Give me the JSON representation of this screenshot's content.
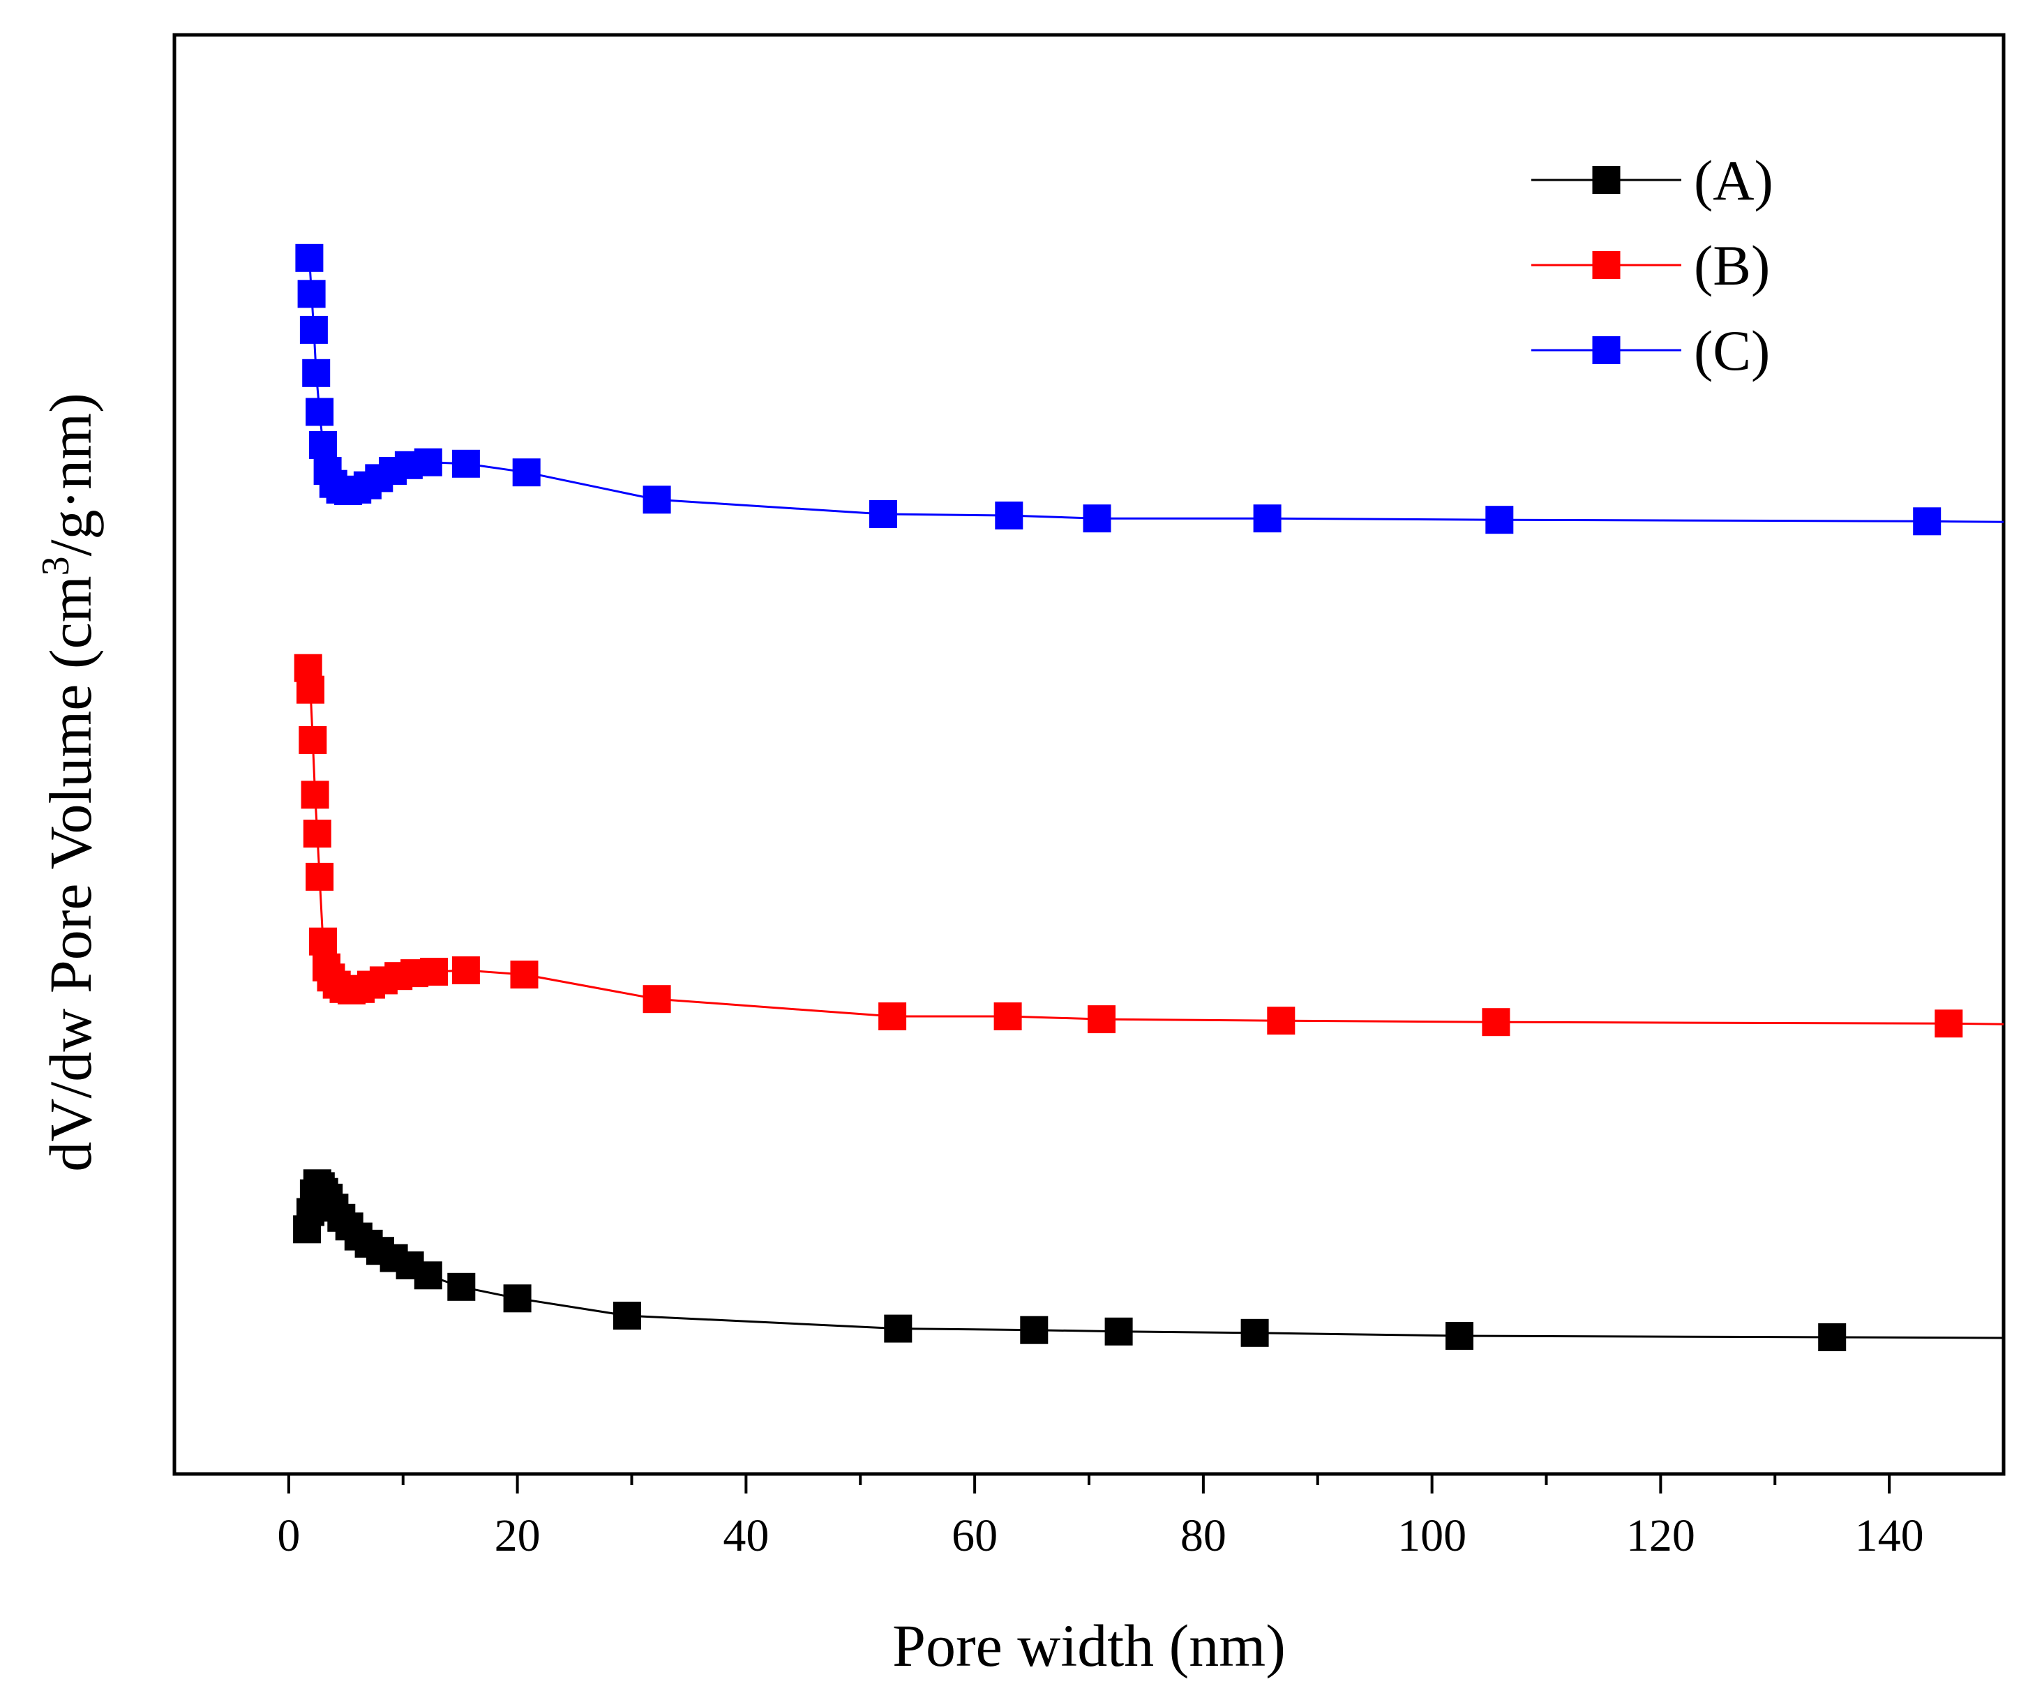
{
  "chart_data": {
    "type": "line",
    "title": "",
    "xlabel": "Pore width (nm)",
    "ylabel_main": "dV/dw Pore Volume (cm",
    "ylabel_sup": "3",
    "ylabel_tail": "/g·nm)",
    "xlim": [
      -10,
      150
    ],
    "ylim": [
      0,
      1
    ],
    "grid": false,
    "y_ticks_shown": false,
    "legend_position": "top-right",
    "x_ticks": [
      {
        "value": 0,
        "label": "0"
      },
      {
        "value": 20,
        "label": "20"
      },
      {
        "value": 40,
        "label": "40"
      },
      {
        "value": 60,
        "label": "60"
      },
      {
        "value": 80,
        "label": "80"
      },
      {
        "value": 100,
        "label": "100"
      },
      {
        "value": 120,
        "label": "120"
      },
      {
        "value": 140,
        "label": "140"
      }
    ],
    "x_minor_ticks": [
      10,
      30,
      50,
      70,
      90,
      110,
      130
    ],
    "series": [
      {
        "name": "(A)",
        "color": "#000000",
        "x": [
          1.6,
          1.9,
          2.2,
          2.5,
          2.8,
          3.1,
          3.5,
          4.0,
          4.6,
          5.3,
          6.1,
          7.0,
          8.0,
          9.2,
          10.6,
          12.2,
          15.1,
          20.0,
          29.6,
          53.3,
          65.2,
          72.6,
          84.5,
          102.4,
          135.0
        ],
        "y": [
          0.17,
          0.182,
          0.195,
          0.202,
          0.2,
          0.196,
          0.192,
          0.185,
          0.178,
          0.172,
          0.165,
          0.16,
          0.155,
          0.15,
          0.145,
          0.138,
          0.13,
          0.122,
          0.11,
          0.101,
          0.1,
          0.099,
          0.098,
          0.096,
          0.095
        ]
      },
      {
        "name": "(B)",
        "color": "#ff0000",
        "x": [
          1.7,
          1.9,
          2.1,
          2.3,
          2.5,
          2.7,
          3.0,
          3.3,
          3.7,
          4.2,
          4.8,
          5.5,
          6.3,
          7.2,
          8.3,
          9.6,
          11.0,
          12.7,
          15.5,
          20.6,
          32.2,
          52.8,
          62.9,
          71.1,
          86.8,
          105.6,
          145.2
        ],
        "y": [
          0.56,
          0.545,
          0.51,
          0.472,
          0.445,
          0.415,
          0.37,
          0.352,
          0.345,
          0.34,
          0.337,
          0.336,
          0.337,
          0.34,
          0.343,
          0.346,
          0.348,
          0.349,
          0.35,
          0.347,
          0.33,
          0.318,
          0.318,
          0.316,
          0.315,
          0.314,
          0.313
        ]
      },
      {
        "name": "(C)",
        "color": "#0000ff",
        "x": [
          1.8,
          2.0,
          2.2,
          2.4,
          2.7,
          3.0,
          3.4,
          3.9,
          4.5,
          5.2,
          6.0,
          6.9,
          7.9,
          9.1,
          10.5,
          12.2,
          15.5,
          20.8,
          32.2,
          52.0,
          63.0,
          70.7,
          85.6,
          105.9,
          143.3
        ],
        "y": [
          0.845,
          0.82,
          0.795,
          0.765,
          0.738,
          0.715,
          0.697,
          0.688,
          0.684,
          0.683,
          0.684,
          0.687,
          0.692,
          0.697,
          0.701,
          0.703,
          0.702,
          0.696,
          0.677,
          0.667,
          0.666,
          0.664,
          0.664,
          0.663,
          0.662
        ]
      }
    ]
  }
}
